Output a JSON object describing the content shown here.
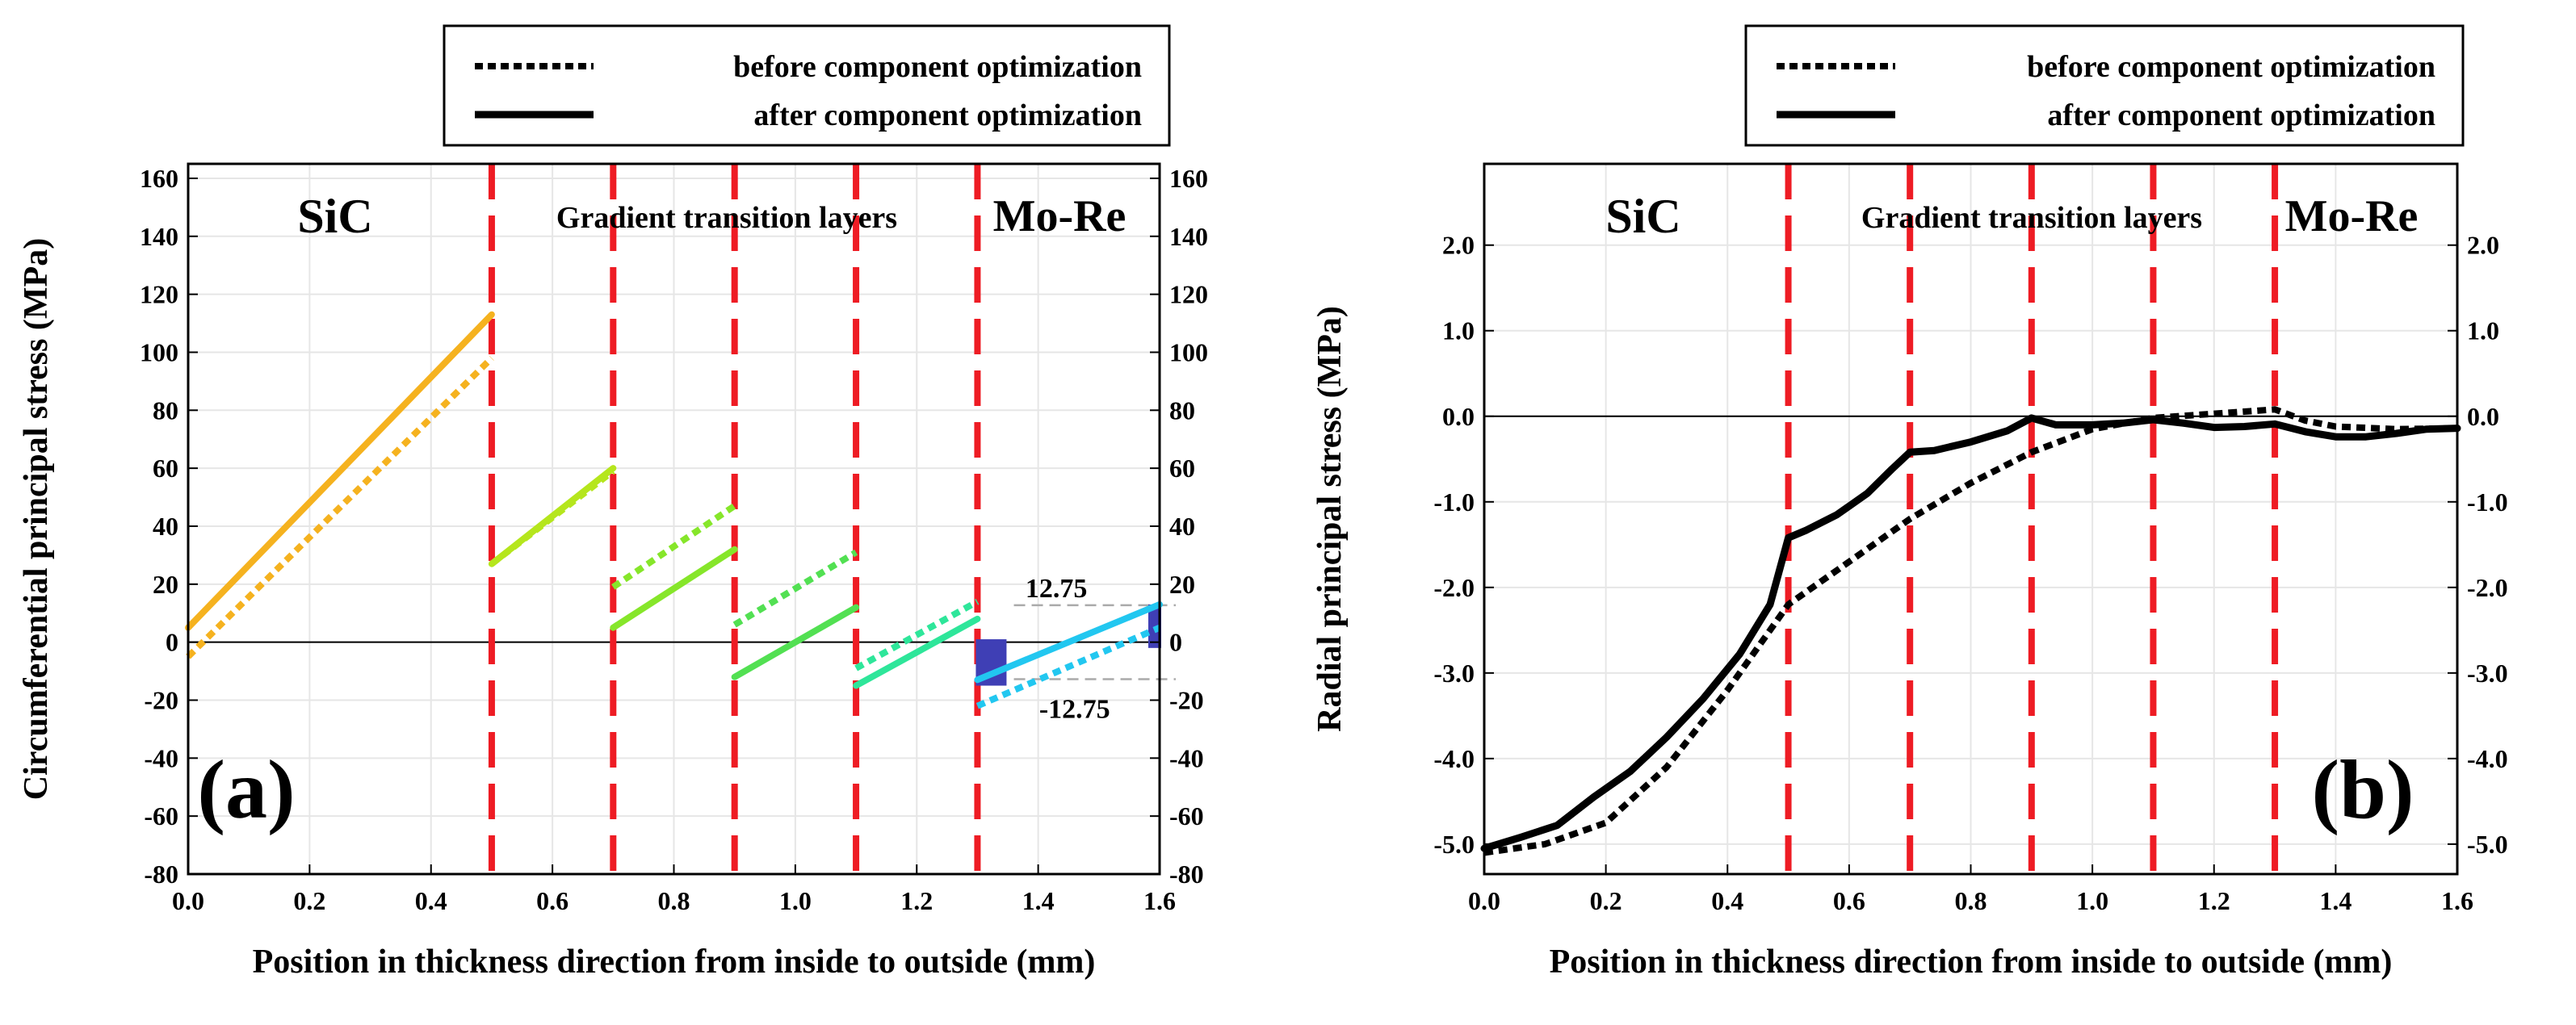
{
  "chart_data": [
    {
      "type": "line",
      "panel_label": "(a)",
      "xlabel": "Position in thickness direction  from inside to outside (mm)",
      "ylabel": "Circumferential  principal  stress (MPa)",
      "xlim": [
        0.0,
        1.6
      ],
      "ylim": [
        -80,
        165
      ],
      "xticks": [
        "0.0",
        "0.2",
        "0.4",
        "0.6",
        "0.8",
        "1.0",
        "1.2",
        "1.4",
        "1.6"
      ],
      "yticks": [
        "-80",
        "-60",
        "-40",
        "-20",
        "0",
        "20",
        "40",
        "60",
        "80",
        "100",
        "120",
        "140",
        "160"
      ],
      "xtick_values": [
        0.0,
        0.2,
        0.4,
        0.6,
        0.8,
        1.0,
        1.2,
        1.4,
        1.6
      ],
      "ytick_values": [
        -80,
        -60,
        -40,
        -20,
        0,
        20,
        40,
        60,
        80,
        100,
        120,
        140,
        160
      ],
      "legend": {
        "before": "before component optimization",
        "after": "after component optimization",
        "position": "top-right"
      },
      "region_labels": {
        "left": "SiC",
        "middle": "Gradient transition layers",
        "right": "Mo-Re"
      },
      "interfaces": [
        0.5,
        0.7,
        0.9,
        1.1,
        1.3
      ],
      "annotations": {
        "upper": "12.75",
        "lower": "-12.75",
        "upper_value": 12.75,
        "lower_value": -12.75
      },
      "series": [
        {
          "name": "SiC after",
          "style": "solid",
          "color": "#f5b21f",
          "x": [
            0.0,
            0.5
          ],
          "y": [
            5,
            113
          ]
        },
        {
          "name": "SiC before",
          "style": "dotted",
          "color": "#f5b21f",
          "x": [
            0.0,
            0.5
          ],
          "y": [
            -5,
            98
          ]
        },
        {
          "name": "Layer 1 after",
          "style": "solid",
          "color": "#b5e61d",
          "x": [
            0.5,
            0.7
          ],
          "y": [
            27,
            60
          ]
        },
        {
          "name": "Layer 1 before",
          "style": "dotted",
          "color": "#b5e61d",
          "x": [
            0.5,
            0.7
          ],
          "y": [
            27,
            59
          ]
        },
        {
          "name": "Layer 2 after",
          "style": "solid",
          "color": "#86e62a",
          "x": [
            0.7,
            0.9
          ],
          "y": [
            5,
            32
          ]
        },
        {
          "name": "Layer 2 before",
          "style": "dotted",
          "color": "#86e62a",
          "x": [
            0.7,
            0.9
          ],
          "y": [
            19,
            47
          ]
        },
        {
          "name": "Layer 3 after",
          "style": "solid",
          "color": "#52e052",
          "x": [
            0.9,
            1.1
          ],
          "y": [
            -12,
            12
          ]
        },
        {
          "name": "Layer 3 before",
          "style": "dotted",
          "color": "#52e052",
          "x": [
            0.9,
            1.1
          ],
          "y": [
            6,
            31
          ]
        },
        {
          "name": "Layer 4 after",
          "style": "solid",
          "color": "#2ee69a",
          "x": [
            1.1,
            1.3
          ],
          "y": [
            -15,
            8
          ]
        },
        {
          "name": "Layer 4 before",
          "style": "dotted",
          "color": "#2ee69a",
          "x": [
            1.1,
            1.3
          ],
          "y": [
            -9,
            14
          ]
        },
        {
          "name": "Mo-Re after",
          "style": "solid",
          "color": "#22c7f0",
          "x": [
            1.3,
            1.6
          ],
          "y": [
            -13,
            13
          ]
        },
        {
          "name": "Mo-Re before",
          "style": "dotted",
          "color": "#22c7f0",
          "x": [
            1.3,
            1.6
          ],
          "y": [
            -22,
            5
          ]
        }
      ]
    },
    {
      "type": "line",
      "panel_label": "(b)",
      "xlabel": "Position in thickness direction  from inside to outside (mm)",
      "ylabel": "Radial  principal  stress (MPa)",
      "xlim": [
        0.0,
        1.6
      ],
      "ylim": [
        -5.35,
        2.95
      ],
      "xticks": [
        "0.0",
        "0.2",
        "0.4",
        "0.6",
        "0.8",
        "1.0",
        "1.2",
        "1.4",
        "1.6"
      ],
      "yticks": [
        "-5.0",
        "-4.0",
        "-3.0",
        "-2.0",
        "-1.0",
        "0.0",
        "1.0",
        "2.0"
      ],
      "xtick_values": [
        0.0,
        0.2,
        0.4,
        0.6,
        0.8,
        1.0,
        1.2,
        1.4,
        1.6
      ],
      "ytick_values": [
        -5.0,
        -4.0,
        -3.0,
        -2.0,
        -1.0,
        0.0,
        1.0,
        2.0
      ],
      "legend": {
        "before": "before component optimization",
        "after": "after component optimization",
        "position": "top-right"
      },
      "region_labels": {
        "left": "SiC",
        "middle": "Gradient transition layers",
        "right": "Mo-Re"
      },
      "interfaces": [
        0.5,
        0.7,
        0.9,
        1.1,
        1.3
      ],
      "series": [
        {
          "name": "after component optimization",
          "style": "solid",
          "color": "#000000",
          "x": [
            0.0,
            0.06,
            0.12,
            0.18,
            0.24,
            0.3,
            0.36,
            0.42,
            0.47,
            0.5,
            0.53,
            0.58,
            0.63,
            0.67,
            0.7,
            0.74,
            0.8,
            0.86,
            0.9,
            0.94,
            1.0,
            1.05,
            1.1,
            1.15,
            1.2,
            1.25,
            1.3,
            1.35,
            1.4,
            1.45,
            1.5,
            1.55,
            1.6
          ],
          "y": [
            -5.05,
            -4.92,
            -4.78,
            -4.45,
            -4.15,
            -3.75,
            -3.3,
            -2.78,
            -2.2,
            -1.42,
            -1.33,
            -1.15,
            -0.9,
            -0.62,
            -0.42,
            -0.4,
            -0.3,
            -0.17,
            -0.02,
            -0.1,
            -0.1,
            -0.08,
            -0.04,
            -0.08,
            -0.13,
            -0.12,
            -0.09,
            -0.18,
            -0.24,
            -0.24,
            -0.2,
            -0.15,
            -0.14
          ]
        },
        {
          "name": "before component optimization",
          "style": "dotted",
          "color": "#000000",
          "x": [
            0.0,
            0.1,
            0.2,
            0.3,
            0.4,
            0.5,
            0.6,
            0.7,
            0.8,
            0.9,
            1.0,
            1.1,
            1.2,
            1.3,
            1.35,
            1.4,
            1.5,
            1.6
          ],
          "y": [
            -5.1,
            -5.0,
            -4.75,
            -4.1,
            -3.2,
            -2.2,
            -1.7,
            -1.2,
            -0.78,
            -0.42,
            -0.15,
            -0.02,
            0.03,
            0.08,
            -0.05,
            -0.12,
            -0.15,
            -0.14
          ]
        }
      ]
    }
  ]
}
